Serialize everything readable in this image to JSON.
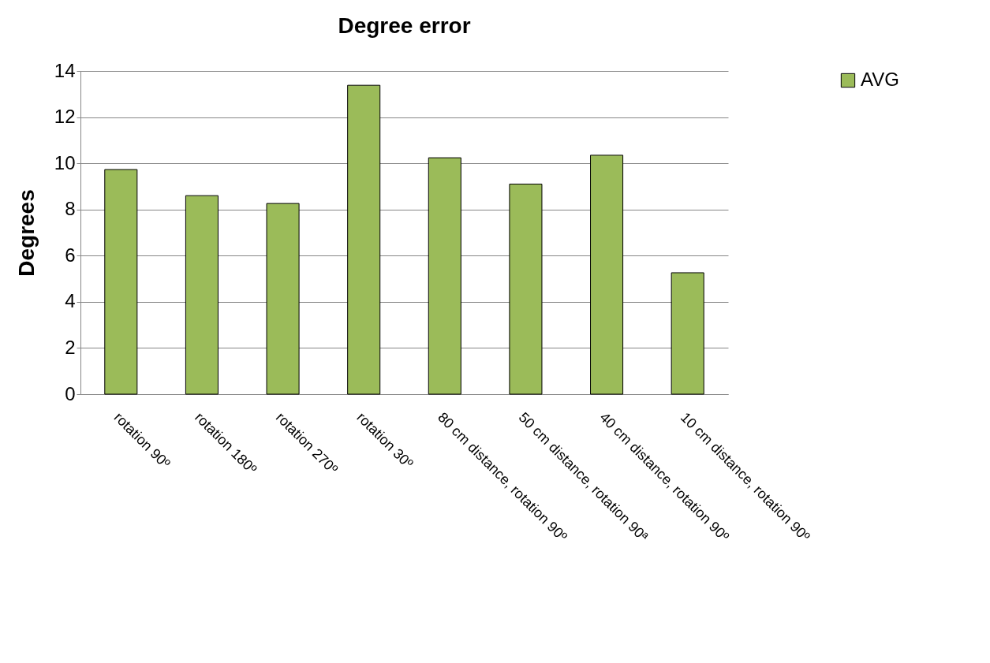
{
  "chart_data": {
    "type": "bar",
    "title": "Degree error",
    "ylabel": "Degrees",
    "categories": [
      "rotation 90º",
      "rotation 180º",
      "rotation 270º",
      "rotation 30º",
      "80 cm distance, rotation 90º",
      "50 cm distance, rotation 90ª",
      "40 cm distance, rotation 90º",
      "10 cm distance, rotation 90º"
    ],
    "series": [
      {
        "name": "AVG",
        "color": "#9bbb59",
        "values": [
          9.73,
          8.6,
          8.26,
          13.38,
          10.24,
          9.1,
          10.35,
          5.26
        ]
      }
    ],
    "ylim": [
      0,
      14
    ],
    "yticks": [
      0,
      2,
      4,
      6,
      8,
      10,
      12,
      14
    ],
    "grid": "y",
    "legend": "right"
  }
}
